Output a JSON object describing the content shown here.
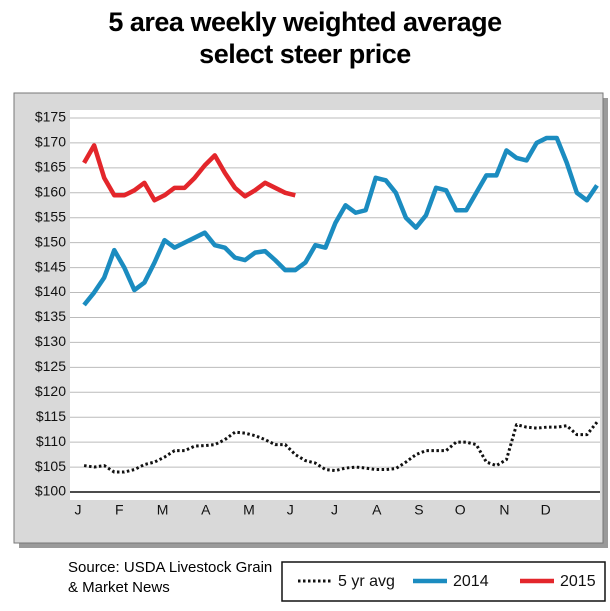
{
  "chart_data": {
    "type": "line",
    "title": "5 area weekly weighted average select steer price",
    "source": "Source: USDA Livestock Grain & Market News",
    "x": [
      1,
      2,
      3,
      4,
      5,
      6,
      7,
      8,
      9,
      10,
      11,
      12,
      13,
      14,
      15,
      16,
      17,
      18,
      19,
      20,
      21,
      22,
      23,
      24,
      25,
      26,
      27,
      28,
      29,
      30,
      31,
      32,
      33,
      34,
      35,
      36,
      37,
      38,
      39,
      40,
      41,
      42,
      43,
      44,
      45,
      46,
      47,
      48,
      49,
      50,
      51,
      52
    ],
    "xlim": [
      -0.4,
      52.3
    ],
    "xticks": [
      {
        "value": 0.4,
        "label": "J"
      },
      {
        "value": 4.5,
        "label": "F"
      },
      {
        "value": 8.8,
        "label": "M"
      },
      {
        "value": 13.1,
        "label": "A"
      },
      {
        "value": 17.4,
        "label": "M"
      },
      {
        "value": 21.5,
        "label": "J"
      },
      {
        "value": 25.9,
        "label": "J"
      },
      {
        "value": 30.1,
        "label": "A"
      },
      {
        "value": 34.3,
        "label": "S"
      },
      {
        "value": 38.4,
        "label": "O"
      },
      {
        "value": 42.8,
        "label": "N"
      },
      {
        "value": 46.9,
        "label": "D"
      }
    ],
    "ylim": [
      100,
      175
    ],
    "yticks": [
      {
        "value": 100,
        "label": "$100"
      },
      {
        "value": 105,
        "label": "$105"
      },
      {
        "value": 110,
        "label": "$110"
      },
      {
        "value": 115,
        "label": "$115"
      },
      {
        "value": 120,
        "label": "$120"
      },
      {
        "value": 125,
        "label": "$125"
      },
      {
        "value": 130,
        "label": "$130"
      },
      {
        "value": 135,
        "label": "$135"
      },
      {
        "value": 140,
        "label": "$140"
      },
      {
        "value": 145,
        "label": "$145"
      },
      {
        "value": 150,
        "label": "$150"
      },
      {
        "value": 155,
        "label": "$155"
      },
      {
        "value": 160,
        "label": "$160"
      },
      {
        "value": 165,
        "label": "$165"
      },
      {
        "value": 170,
        "label": "$170"
      },
      {
        "value": 175,
        "label": "$175"
      }
    ],
    "grid": true,
    "series": [
      {
        "name": "5 yr avg",
        "color": "#111111",
        "dash": "dotted",
        "values": [
          105.3,
          105,
          105.3,
          104,
          104,
          104.5,
          105.5,
          106,
          107,
          108.3,
          108.3,
          109.2,
          109.3,
          109.5,
          110.5,
          112,
          111.8,
          111.3,
          110.5,
          109.5,
          109.5,
          107.5,
          106.3,
          105.8,
          104.5,
          104.3,
          104.8,
          105,
          104.8,
          104.5,
          104.5,
          104.7,
          106,
          107.5,
          108.3,
          108.3,
          108.3,
          110,
          110,
          109.5,
          106,
          105.3,
          106.5,
          113.5,
          113,
          112.8,
          113,
          113,
          113.3,
          111.5,
          111.5,
          114
        ]
      },
      {
        "name": "2014",
        "color": "#1b8cc0",
        "values": [
          137.5,
          140,
          143,
          148.5,
          145,
          140.5,
          142,
          146,
          150.5,
          149,
          150,
          151,
          152,
          149.5,
          149,
          147,
          146.5,
          148,
          148.3,
          146.5,
          144.5,
          144.5,
          146,
          149.5,
          149,
          154,
          157.5,
          156,
          156.5,
          163,
          162.5,
          160,
          155,
          153,
          155.5,
          161,
          160.5,
          156.5,
          156.5,
          160,
          163.5,
          163.5,
          168.5,
          167,
          166.5,
          170,
          171,
          171,
          166,
          160,
          158.5,
          161.5
        ]
      },
      {
        "name": "2015",
        "color": "#e3262b",
        "values": [
          166,
          169.5,
          163,
          159.5,
          159.5,
          160.5,
          162,
          158.5,
          159.5,
          161,
          161,
          163,
          165.5,
          167.5,
          164,
          161,
          159.3,
          160.5,
          162,
          161,
          160,
          159.5,
          null,
          null,
          null,
          null,
          null,
          null,
          null,
          null,
          null,
          null,
          null,
          null,
          null,
          null,
          null,
          null,
          null,
          null,
          null,
          null,
          null,
          null,
          null,
          null,
          null,
          null,
          null,
          null,
          null,
          null
        ]
      }
    ]
  }
}
